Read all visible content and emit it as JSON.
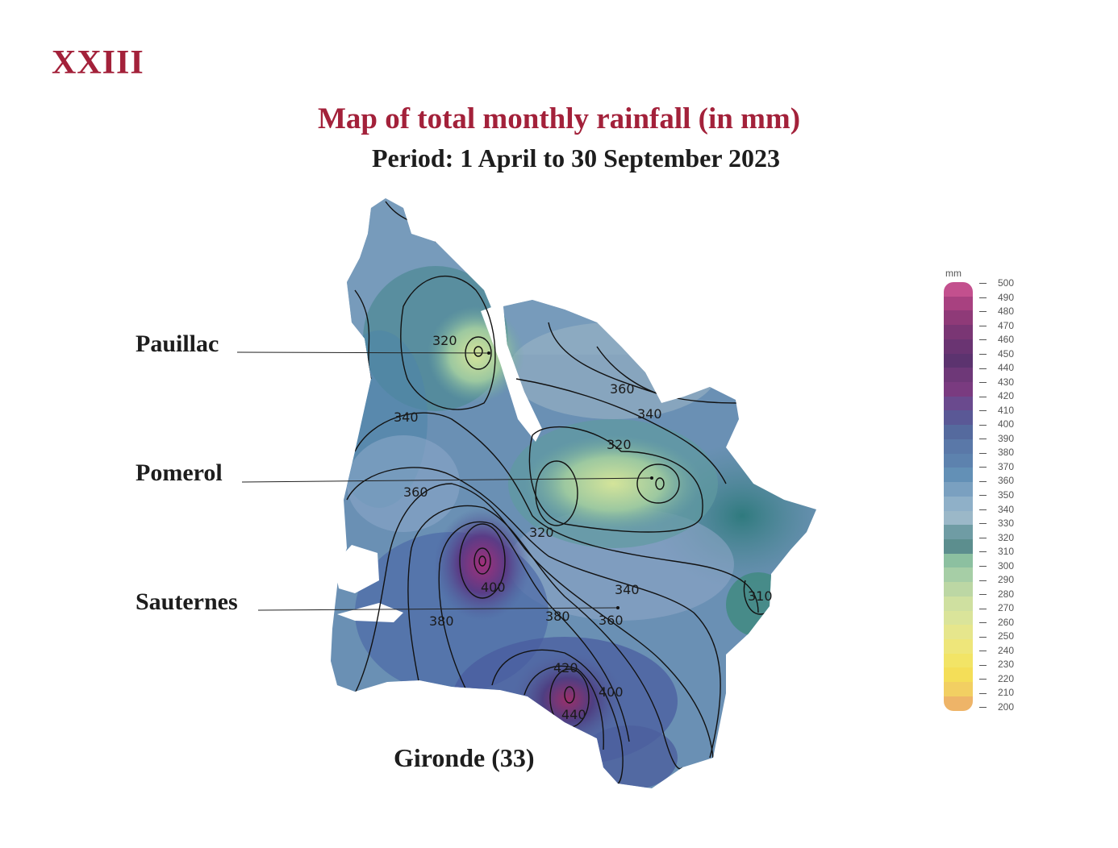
{
  "chapter": "XXIII",
  "title": "Map of total monthly rainfall (in mm)",
  "subtitle": "Period: 1 April to 30 September 2023",
  "region_label": "Gironde (33)",
  "places": [
    {
      "name": "Pauillac"
    },
    {
      "name": "Pomerol"
    },
    {
      "name": "Sauternes"
    }
  ],
  "legend": {
    "unit": "mm",
    "ticks": [
      "500",
      "490",
      "480",
      "470",
      "460",
      "450",
      "440",
      "430",
      "420",
      "410",
      "400",
      "390",
      "380",
      "370",
      "360",
      "350",
      "340",
      "330",
      "320",
      "310",
      "300",
      "290",
      "280",
      "270",
      "260",
      "250",
      "240",
      "230",
      "220",
      "210",
      "200"
    ],
    "colors": [
      "#c3508e",
      "#a84180",
      "#8f3a78",
      "#7a3674",
      "#6a3472",
      "#5c336f",
      "#6e3878",
      "#7a3b80",
      "#6a4a8e",
      "#5a5896",
      "#556a9e",
      "#5a78a8",
      "#5d82ae",
      "#6390b6",
      "#7aa0c0",
      "#8fb0c8",
      "#9bb8c8",
      "#6f9ca4",
      "#5c8e8e",
      "#8cc0a0",
      "#a6cea6",
      "#bcd7a4",
      "#cfe0a0",
      "#dae49a",
      "#e6e68c",
      "#eee67a",
      "#f2e466",
      "#f4de58",
      "#f2cf62",
      "#eeb468"
    ]
  },
  "contour_labels": [
    "320",
    "340",
    "360",
    "360",
    "340",
    "320",
    "320",
    "310",
    "340",
    "400",
    "380",
    "380",
    "360",
    "420",
    "400",
    "440"
  ]
}
